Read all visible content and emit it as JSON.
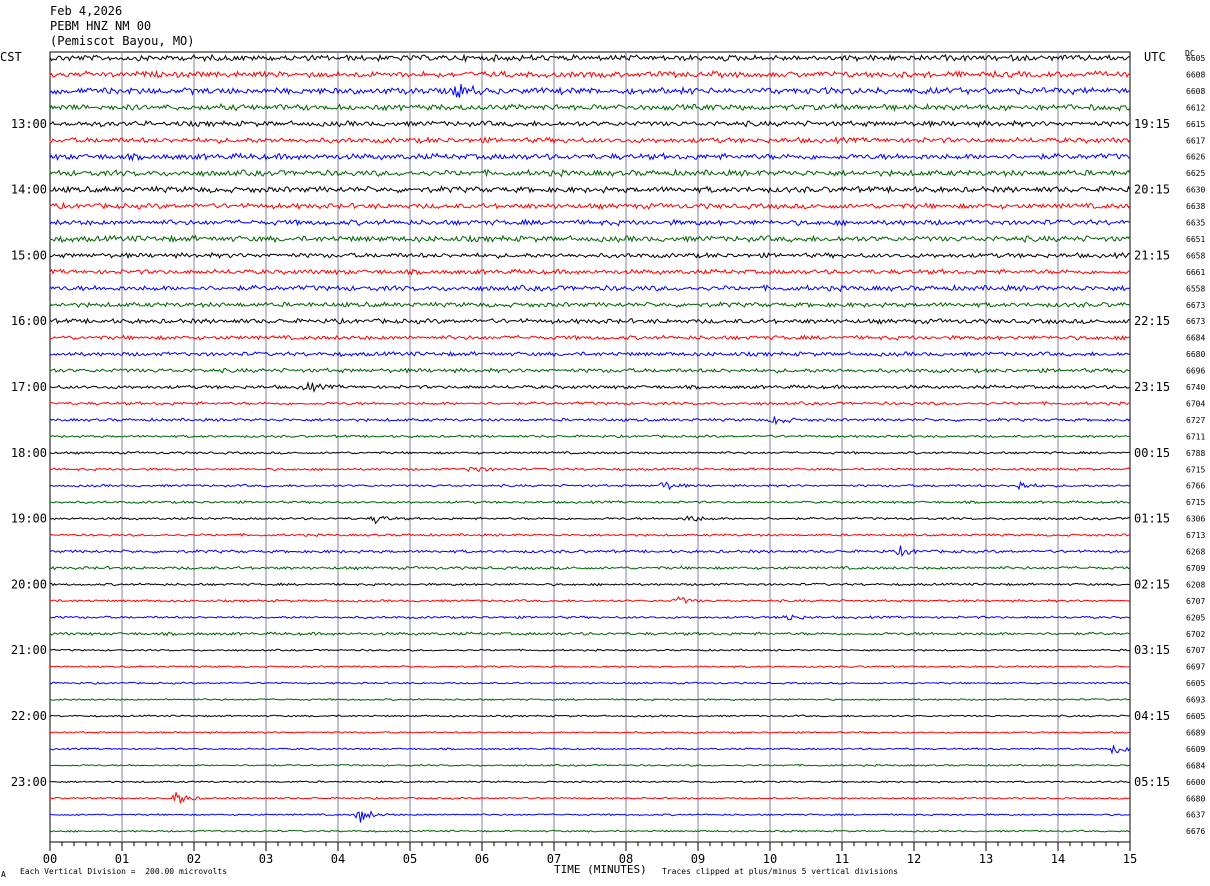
{
  "header": {
    "date": "Feb 4,2026",
    "station": "PEBM HNZ NM 00",
    "location": "(Pemiscot Bayou, MO)"
  },
  "left_tz": "CST",
  "right_tz": "UTC",
  "dc_label": "DC",
  "footer": {
    "scale": "Each Vertical Division =  200.00 microvolts",
    "xlabel": "TIME (MINUTES)",
    "clip": "Traces clipped at plus/minus 5 vertical divisions",
    "corner": "A"
  },
  "colors": [
    "#000000",
    "#ff0000",
    "#0000ff",
    "#006400"
  ],
  "chart_data": {
    "type": "line",
    "title": "PEBM HNZ NM 00",
    "xlabel": "TIME (MINUTES)",
    "xlim": [
      0,
      15
    ],
    "x_ticks": [
      "00",
      "01",
      "02",
      "03",
      "04",
      "05",
      "06",
      "07",
      "08",
      "09",
      "10",
      "11",
      "12",
      "13",
      "14",
      "15"
    ],
    "left_hour_labels": [
      "13:00",
      "14:00",
      "15:00",
      "16:00",
      "17:00",
      "18:00",
      "19:00",
      "20:00",
      "21:00",
      "22:00",
      "23:00"
    ],
    "right_hour_labels": [
      "19:15",
      "20:15",
      "21:15",
      "22:15",
      "23:15",
      "00:15",
      "01:15",
      "02:15",
      "03:15",
      "04:15",
      "05:15"
    ],
    "trace_colors_cycle": [
      "black",
      "red",
      "blue",
      "green"
    ],
    "dc_offsets": [
      "6605",
      "6608",
      "6608",
      "6612",
      "6615",
      "6617",
      "6626",
      "6625",
      "6630",
      "6638",
      "6635",
      "6651",
      "6658",
      "6661",
      "6558",
      "6673",
      "6673",
      "6684",
      "6680",
      "6696",
      "6740",
      "6704",
      "6727",
      "6711",
      "6788",
      "6715",
      "6766",
      "6715",
      "6306",
      "6713",
      "6268",
      "6709",
      "6208",
      "6707",
      "6205",
      "6702",
      "6707",
      "6697",
      "6605",
      "6693",
      "6605",
      "6689",
      "6609",
      "6684",
      "6600",
      "6680",
      "6637",
      "6676"
    ],
    "amplitude_per_trace": [
      1.0,
      1.0,
      1.1,
      1.0,
      0.9,
      0.9,
      1.0,
      1.0,
      1.0,
      0.9,
      0.9,
      1.0,
      0.8,
      0.8,
      0.9,
      0.8,
      0.8,
      0.7,
      0.7,
      0.7,
      0.6,
      0.5,
      0.5,
      0.4,
      0.4,
      0.4,
      0.4,
      0.4,
      0.4,
      0.4,
      0.5,
      0.5,
      0.4,
      0.4,
      0.4,
      0.5,
      0.3,
      0.3,
      0.3,
      0.3,
      0.3,
      0.3,
      0.3,
      0.3,
      0.3,
      0.3,
      0.3,
      0.3
    ],
    "events": [
      {
        "trace": 2,
        "minute": 5.65,
        "amp": 10
      },
      {
        "trace": 20,
        "minute": 3.55,
        "amp": 6
      },
      {
        "trace": 22,
        "minute": 10.05,
        "amp": 6
      },
      {
        "trace": 25,
        "minute": 5.85,
        "amp": 5
      },
      {
        "trace": 26,
        "minute": 8.5,
        "amp": 6
      },
      {
        "trace": 26,
        "minute": 13.45,
        "amp": 5
      },
      {
        "trace": 28,
        "minute": 4.5,
        "amp": 5
      },
      {
        "trace": 28,
        "minute": 8.85,
        "amp": 5
      },
      {
        "trace": 30,
        "minute": 11.8,
        "amp": 5
      },
      {
        "trace": 33,
        "minute": 8.7,
        "amp": 5
      },
      {
        "trace": 34,
        "minute": 10.2,
        "amp": 5
      },
      {
        "trace": 42,
        "minute": 14.75,
        "amp": 8
      },
      {
        "trace": 45,
        "minute": 1.75,
        "amp": 8
      },
      {
        "trace": 46,
        "minute": 4.3,
        "amp": 9
      }
    ]
  }
}
